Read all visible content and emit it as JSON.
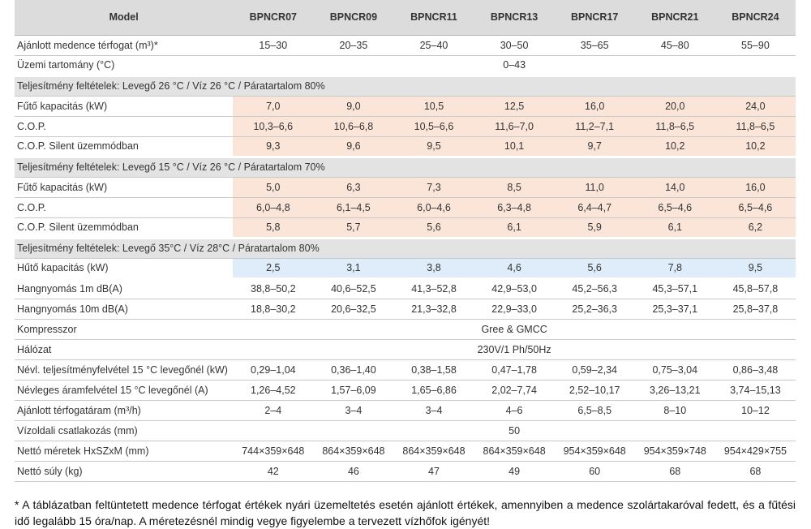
{
  "header": {
    "model_label": "Model",
    "models": [
      "BPNCR07",
      "BPNCR09",
      "BPNCR11",
      "BPNCR13",
      "BPNCR17",
      "BPNCR21",
      "BPNCR24"
    ]
  },
  "rows": {
    "pool_volume": {
      "label": "Ajánlott medence térfogat (m³)*",
      "values": [
        "15–30",
        "20–35",
        "25–40",
        "30–50",
        "35–65",
        "45–80",
        "55–90"
      ]
    },
    "operating_range": {
      "label": "Üzemi tartomány (°C)",
      "value": "0–43"
    },
    "section1": {
      "label": "Teljesítmény feltételek: Levegő 26 °C / Víz 26 °C / Páratartalom 80%"
    },
    "heat1": {
      "label": "Fűtő kapacitás (kW)",
      "values": [
        "7,0",
        "9,0",
        "10,5",
        "12,5",
        "16,0",
        "20,0",
        "24,0"
      ]
    },
    "cop1": {
      "label": "C.O.P.",
      "values": [
        "10,3–6,6",
        "10,6–6,8",
        "10,5–6,6",
        "11,6–7,0",
        "11,2–7,1",
        "11,8–6,5",
        "11,8–6,5"
      ]
    },
    "silent1": {
      "label": "C.O.P. Silent üzemmódban",
      "values": [
        "9,3",
        "9,6",
        "9,5",
        "10,1",
        "9,7",
        "10,2",
        "10,2"
      ]
    },
    "section2": {
      "label": "Teljesítmény feltételek: Levegő 15 °C / Víz 26 °C / Páratartalom 70%"
    },
    "heat2": {
      "label": "Fűtő kapacitás (kW)",
      "values": [
        "5,0",
        "6,3",
        "7,3",
        "8,5",
        "11,0",
        "14,0",
        "16,0"
      ]
    },
    "cop2": {
      "label": "C.O.P.",
      "values": [
        "6,0–4,8",
        "6,1–4,5",
        "6,0–4,6",
        "6,3–4,8",
        "6,4–4,7",
        "6,5–4,6",
        "6,5–4,6"
      ]
    },
    "silent2": {
      "label": "C.O.P. Silent üzemmódban",
      "values": [
        "5,8",
        "5,7",
        "5,6",
        "6,1",
        "5,9",
        "6,1",
        "6,2"
      ]
    },
    "section3": {
      "label": "Teljesítmény feltételek: Levegő 35°C / Víz 28°C / Páratartalom 80%"
    },
    "cool": {
      "label": "Hűtő kapacitás (kW)",
      "values": [
        "2,5",
        "3,1",
        "3,8",
        "4,6",
        "5,6",
        "7,8",
        "9,5"
      ]
    },
    "noise1": {
      "label": "Hangnyomás 1m dB(A)",
      "values": [
        "38,8–50,2",
        "40,6–52,5",
        "41,3–52,8",
        "42,9–53,0",
        "45,2–56,3",
        "45,3–57,1",
        "45,8–57,8"
      ]
    },
    "noise10": {
      "label": "Hangnyomás 10m dB(A)",
      "values": [
        "18,8–30,2",
        "20,6–32,5",
        "21,3–32,8",
        "22,9–33,0",
        "25,2–36,3",
        "25,3–37,1",
        "25,8–37,8"
      ]
    },
    "compressor": {
      "label": "Kompresszor",
      "value": "Gree & GMCC"
    },
    "network": {
      "label": "Hálózat",
      "value": "230V/1 Ph/50Hz"
    },
    "power": {
      "label": "Névl. teljesítményfelvétel 15 °C levegőnél (kW)",
      "values": [
        "0,29–1,04",
        "0,36–1,40",
        "0,38–1,58",
        "0,47–1,78",
        "0,59–2,34",
        "0,75–3,04",
        "0,86–3,48"
      ]
    },
    "current": {
      "label": "Névleges áramfelvétel 15 °C levegőnél (A)",
      "values": [
        "1,26–4,52",
        "1,57–6,09",
        "1,65–6,86",
        "2,02–7,74",
        "2,52–10,17",
        "3,26–13,21",
        "3,74–15,13"
      ]
    },
    "flow": {
      "label": "Ajánlott térfogatáram (m³/h)",
      "values": [
        "2–4",
        "3–4",
        "3–4",
        "4–6",
        "6,5–8,5",
        "8–10",
        "10–12"
      ]
    },
    "connection": {
      "label": "Vízoldali csatlakozás (mm)",
      "value": "50"
    },
    "dimensions": {
      "label": "Nettó méretek HxSZxM (mm)",
      "values": [
        "744×359×648",
        "864×359×648",
        "864×359×648",
        "864×359×648",
        "954×359×648",
        "954×359×748",
        "954×429×755"
      ]
    },
    "weight": {
      "label": "Nettó súly (kg)",
      "values": [
        "42",
        "46",
        "47",
        "49",
        "60",
        "68",
        "68"
      ]
    }
  },
  "footnote": "* A táblázatban feltüntetett medence térfogat értékek nyári üzemeltetés esetén ajánlott értékek, amennyiben a medence szolártakaróval fedett, és a fűtési idő legalább 15 óra/nap. A méretezésnél mindig vegye figyelembe a tervezett vízhőfok igényét!",
  "colors": {
    "header_bg": "#dcdcdc",
    "section_bg": "#e3e3e3",
    "heating_bg": "#fbe5d9",
    "cooling_bg": "#deedf9"
  }
}
